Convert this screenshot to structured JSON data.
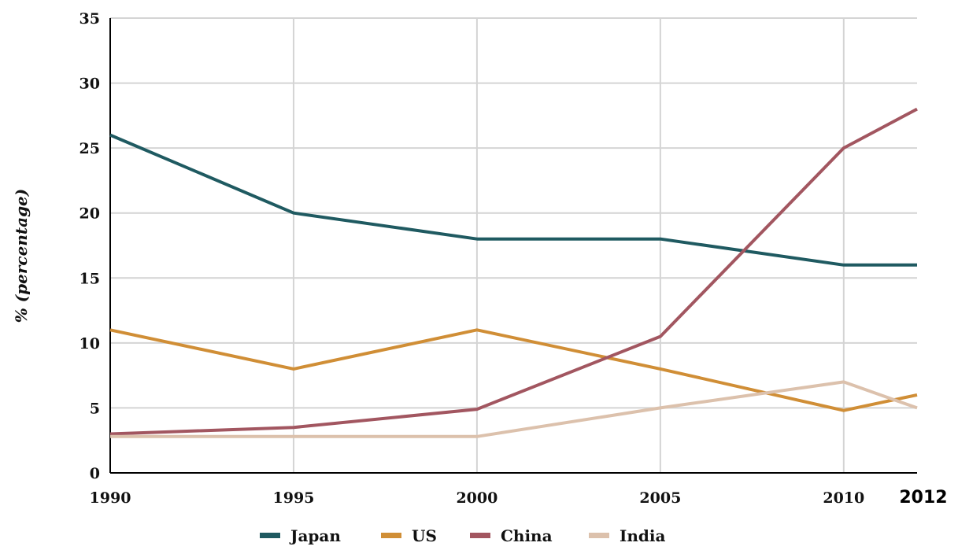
{
  "chart_data": {
    "type": "line",
    "title": "",
    "xlabel": "",
    "ylabel": "% (percentage)",
    "x": [
      1990,
      1995,
      2000,
      2005,
      2010,
      2012
    ],
    "x_tick_labels": [
      "1990",
      "1995",
      "2000",
      "2005",
      "2010",
      "2012"
    ],
    "y_ticks": [
      "0",
      "5",
      "10",
      "15",
      "20",
      "25",
      "30",
      "35"
    ],
    "ylim": [
      0,
      35
    ],
    "xlim": [
      1990,
      2012
    ],
    "grid": true,
    "legend_position": "bottom",
    "series": [
      {
        "name": "Japan",
        "color": "#1f5a61",
        "values": [
          26,
          20,
          18,
          18,
          16,
          16
        ]
      },
      {
        "name": "US",
        "color": "#d08e36",
        "values": [
          11,
          8,
          11,
          8,
          4.8,
          6
        ]
      },
      {
        "name": "China",
        "color": "#a25660",
        "values": [
          3,
          3.5,
          4.9,
          10.5,
          25,
          28
        ]
      },
      {
        "name": "India",
        "color": "#dcc1ac",
        "values": [
          2.8,
          2.8,
          2.8,
          5,
          7,
          5
        ]
      }
    ]
  }
}
